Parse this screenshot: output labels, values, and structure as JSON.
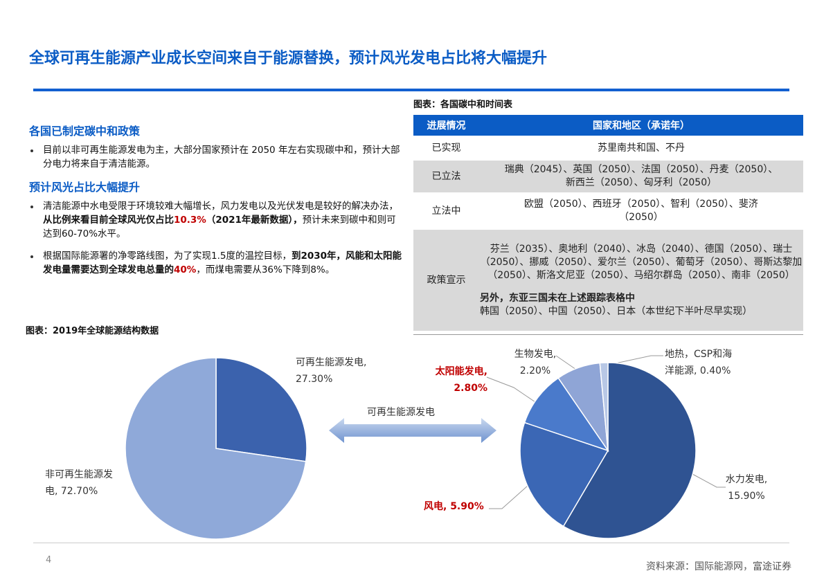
{
  "header": {
    "title": "全球可再生能源产业成长空间来自于能源替换，预计风光发电占比将大幅提升"
  },
  "sections": [
    {
      "heading": "各国已制定碳中和政策",
      "bullets": [
        [
          "目前以非可再生能源发电为主，大部分国家预计在 2050 年左右实现碳中和，预计大部分电力将来自于清洁能源。"
        ]
      ]
    },
    {
      "heading": "预计风光占比大幅提升",
      "bullets": [
        [
          "清洁能源中水电受限于环境较难大幅增长，风力发电以及光伏发电是较好的解决办法，",
          "从比例来看目前全球风光仅占比",
          "10.3%",
          "（2021年最新数据），",
          "预计未来到碳中和则可达到60-70%水平。"
        ],
        [
          "根据国际能源署的净零路线图，为了实现1.5度的温控目标，",
          "到2030年，风能和太阳能发电量需要达到全球发电总量的",
          "40%",
          "，而煤电需要从36%下降到8%。"
        ]
      ]
    }
  ],
  "table": {
    "caption": "图表：各国碳中和时间表",
    "headers": [
      "进展情况",
      "国家和地区（承诺年）"
    ],
    "rows": [
      [
        "已实现",
        "苏里南共和国、不丹"
      ],
      [
        "已立法",
        "瑞典（2045）、英国（2050）、法国（2050）、丹麦（2050）、新西兰（2050）、匈牙利（2050）"
      ],
      [
        "立法中",
        "欧盟（2050）、西班牙（2050）、智利（2050）、斐济（2050）"
      ],
      [
        "政策宣示",
        "芬兰（2035）、奥地利（2040）、冰岛（2040）、德国（2050）、瑞士（2050）、挪威（2050）、爱尔兰（2050）、葡萄牙（2050）、哥斯达黎加（2050）、斯洛文尼亚（2050）、马绍尔群岛（2050）、南非（2050）",
        "另外，东亚三国未在上述跟踪表格中",
        "韩国（2050）、中国（2050）、日本（本世纪下半叶尽早实现）"
      ]
    ]
  },
  "charts_caption": "图表：2019年全球能源结构数据",
  "arrow_label": "可再生能源发电",
  "chart_data": [
    {
      "type": "pie",
      "values": [
        27.3,
        72.7
      ],
      "value_labels": [
        "可再生能源发电, 27.30%",
        "非可再生能源发电, 72.70%"
      ],
      "colors": [
        "#3b62ad",
        "#8fa9d9"
      ]
    },
    {
      "type": "pie",
      "values": [
        15.9,
        5.9,
        2.8,
        2.2,
        0.4
      ],
      "value_labels": [
        "水力发电, 15.90%",
        "风电, 5.90%",
        "太阳能发电, 2.80%",
        "生物发电, 2.20%",
        "地热，CSP和海洋能源, 0.40%"
      ],
      "colors": [
        "#2f5392",
        "#3b67b5",
        "#4a7acb",
        "#8fa5d6",
        "#b8c8e6"
      ]
    }
  ],
  "footer": {
    "page": "4",
    "source": "资料来源：国际能源网，富途证券"
  }
}
